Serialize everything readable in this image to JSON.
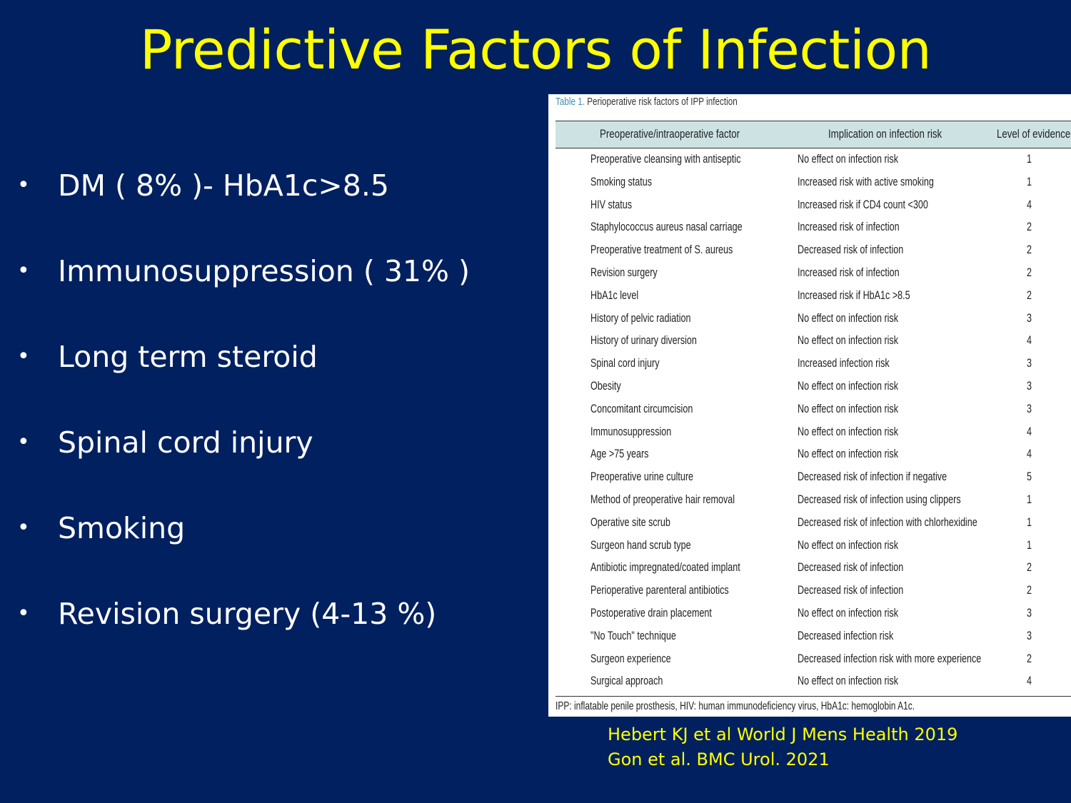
{
  "title": "Predictive Factors of Infection",
  "bullets": [
    "DM ( 8% )- HbA1c>8.5",
    "Immunosuppression ( 31% )",
    "Long term steroid",
    "Spinal cord injury",
    "Smoking",
    "Revision surgery (4-13 %)"
  ],
  "table": {
    "caption_tag": "Table 1.",
    "caption_text": "Perioperative risk factors of IPP infection",
    "headers": [
      "Preoperative/intraoperative factor",
      "Implication on infection risk",
      "Level of evidence"
    ],
    "rows": [
      [
        "Preoperative cleansing with antiseptic",
        "No effect on infection risk",
        "1"
      ],
      [
        "Smoking status",
        "Increased risk with active smoking",
        "1"
      ],
      [
        "HIV status",
        "Increased risk if CD4 count <300",
        "4"
      ],
      [
        "Staphylococcus aureus nasal carriage",
        "Increased risk of infection",
        "2"
      ],
      [
        "Preoperative treatment of S. aureus",
        "Decreased risk of infection",
        "2"
      ],
      [
        "Revision surgery",
        "Increased risk of infection",
        "2"
      ],
      [
        "HbA1c level",
        "Increased risk if HbA1c >8.5",
        "2"
      ],
      [
        "History of pelvic radiation",
        "No effect on infection risk",
        "3"
      ],
      [
        "History of urinary diversion",
        "No effect on infection risk",
        "4"
      ],
      [
        "Spinal cord injury",
        "Increased infection risk",
        "3"
      ],
      [
        "Obesity",
        "No effect on infection risk",
        "3"
      ],
      [
        "Concomitant circumcision",
        "No effect on infection risk",
        "3"
      ],
      [
        "Immunosuppression",
        "No effect on infection risk",
        "4"
      ],
      [
        "Age >75 years",
        "No effect on infection risk",
        "4"
      ],
      [
        "Preoperative urine culture",
        "Decreased risk of infection if negative",
        "5"
      ],
      [
        "Method of preoperative hair removal",
        "Decreased risk of infection using clippers",
        "1"
      ],
      [
        "Operative site scrub",
        "Decreased risk of infection with chlorhexidine",
        "1"
      ],
      [
        "Surgeon hand scrub type",
        "No effect on infection risk",
        "1"
      ],
      [
        "Antibiotic impregnated/coated implant",
        "Decreased risk of infection",
        "2"
      ],
      [
        "Perioperative parenteral antibiotics",
        "Decreased risk of infection",
        "2"
      ],
      [
        "Postoperative drain placement",
        "No effect on infection risk",
        "3"
      ],
      [
        "\"No Touch\" technique",
        "Decreased infection risk",
        "3"
      ],
      [
        "Surgeon experience",
        "Decreased infection risk with more experience",
        "2"
      ],
      [
        "Surgical approach",
        "No effect on infection risk",
        "4"
      ]
    ],
    "footnote": "IPP: inflatable penile prosthesis, HIV: human immunodeficiency virus, HbA1c: hemoglobin A1c."
  },
  "references": [
    "Hebert KJ et al World J Mens Health 2019",
    "Gon et al. BMC Urol. 2021"
  ],
  "colors": {
    "background": "#00205f",
    "title": "#ffff00",
    "bullet_text": "#ffffff",
    "table_header_band": "#cde3e3",
    "caption_tag": "#3a8fb0",
    "references": "#ffff00"
  }
}
